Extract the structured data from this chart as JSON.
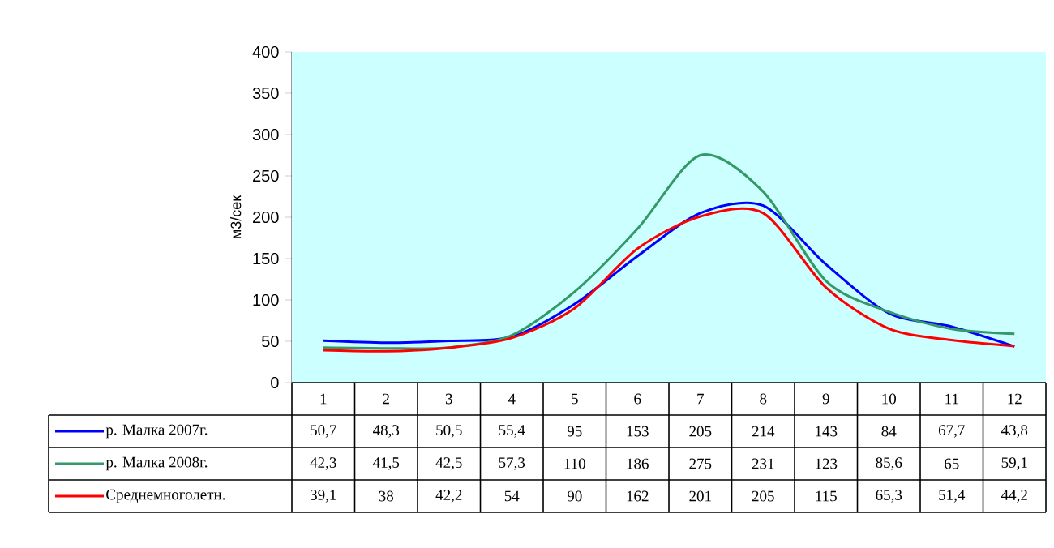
{
  "chart_data": {
    "type": "line",
    "ylabel": "м3/сек",
    "categories": [
      "1",
      "2",
      "3",
      "4",
      "5",
      "6",
      "7",
      "8",
      "9",
      "10",
      "11",
      "12"
    ],
    "ylim": [
      0,
      400
    ],
    "yticks": [
      0,
      50,
      100,
      150,
      200,
      250,
      300,
      350,
      400
    ],
    "legend": "bottom left",
    "series": [
      {
        "name": "р. Малка 2007г.",
        "color": "#0000ff",
        "values": [
          50.7,
          48.3,
          50.5,
          55.4,
          95,
          153,
          205,
          214,
          143,
          84,
          67.7,
          43.8
        ],
        "value_labels": [
          "50,7",
          "48,3",
          "50,5",
          "55,4",
          "95",
          "153",
          "205",
          "214",
          "143",
          "84",
          "67,7",
          "43,8"
        ]
      },
      {
        "name": "р. Малка 2008г.",
        "color": "#339966",
        "values": [
          42.3,
          41.5,
          42.5,
          57.3,
          110,
          186,
          275,
          231,
          123,
          85.6,
          65,
          59.1
        ],
        "value_labels": [
          "42,3",
          "41,5",
          "42,5",
          "57,3",
          "110",
          "186",
          "275",
          "231",
          "123",
          "85,6",
          "65",
          "59,1"
        ]
      },
      {
        "name": "Среднемноголетн.",
        "color": "#ff0000",
        "values": [
          39.1,
          38,
          42.2,
          54,
          90,
          162,
          201,
          205,
          115,
          65.3,
          51.4,
          44.2
        ],
        "value_labels": [
          "39,1",
          "38",
          "42,2",
          "54",
          "90",
          "162",
          "201",
          "205",
          "115",
          "65,3",
          "51,4",
          "44,2"
        ]
      }
    ]
  }
}
